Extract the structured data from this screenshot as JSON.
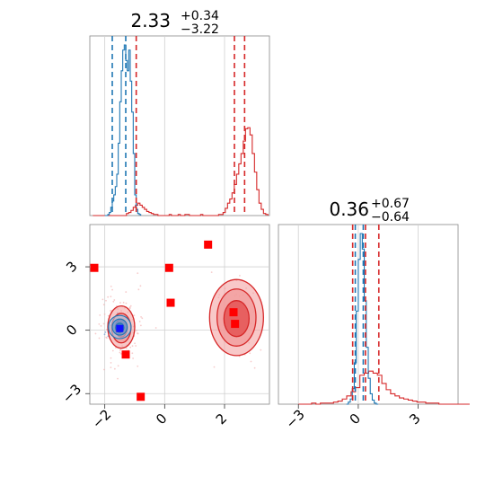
{
  "figure": {
    "colors": {
      "red": "#d62728",
      "blue": "#1f77b4",
      "marker": "#ff0000",
      "grid": "#d0d0d0",
      "axis": "#888888",
      "fill_red": "#f29a9a",
      "fill_red_dark": "#e34a4a",
      "fill_blue": "#a9c7e6",
      "fill_blue_dark": "#5a8fca"
    }
  },
  "chart_data": [
    {
      "type": "histogram",
      "panel": "marginal-param-1",
      "title": {
        "value": "2.33",
        "plus": "+0.34",
        "minus": "−3.22"
      },
      "xlim": [
        -2.5,
        3.5
      ],
      "grid": true,
      "red_dashed_lines": [
        -0.95,
        2.33,
        2.67
      ],
      "blue_dashed_lines": [
        -1.75,
        -1.3
      ],
      "series": [
        {
          "color": "red",
          "bins_x0": -2.4,
          "bin_width": 0.075,
          "counts": [
            0,
            0,
            0,
            0,
            0,
            0,
            0,
            0,
            0,
            0,
            0,
            0,
            0,
            0,
            0,
            2,
            3,
            5,
            8,
            10,
            12,
            10,
            8,
            6,
            4,
            3,
            2,
            1,
            1,
            0,
            0,
            0,
            0,
            0,
            1,
            0,
            0,
            0,
            1,
            0,
            0,
            1,
            1,
            0,
            0,
            0,
            0,
            0,
            1,
            0,
            0,
            0,
            0,
            0,
            0,
            0,
            1,
            1,
            3,
            7,
            12,
            16,
            22,
            30,
            40,
            50,
            60,
            72,
            84,
            85,
            78,
            60,
            42,
            25,
            12,
            6,
            2,
            1
          ]
        },
        {
          "color": "blue",
          "bins_x0": -2.0,
          "bin_width": 0.05,
          "counts": [
            0,
            0,
            1,
            3,
            8,
            14,
            20,
            28,
            40,
            70,
            110,
            140,
            160,
            165,
            150,
            140,
            160,
            130,
            100,
            60,
            20,
            6,
            2,
            1
          ]
        }
      ]
    },
    {
      "type": "histogram",
      "panel": "marginal-param-2",
      "title": {
        "value": "0.36",
        "plus": "+0.67",
        "minus": "−0.64"
      },
      "xlim": [
        -4,
        5
      ],
      "xticks": [
        -3,
        0,
        3
      ],
      "grid": true,
      "red_dashed_lines": [
        -0.28,
        0.36,
        1.03
      ],
      "blue_dashed_lines": [
        -0.15,
        0.25
      ],
      "series": [
        {
          "color": "red",
          "bins_x0": -3.0,
          "bin_width": 0.22,
          "counts": [
            0,
            0,
            0,
            1,
            0,
            1,
            1,
            1,
            2,
            3,
            5,
            8,
            12,
            16,
            28,
            30,
            32,
            30,
            28,
            20,
            14,
            10,
            8,
            6,
            5,
            4,
            3,
            2,
            2,
            1,
            1,
            1,
            0,
            0,
            0,
            0,
            0,
            0,
            0
          ]
        },
        {
          "color": "blue",
          "bins_x0": -0.6,
          "bin_width": 0.1,
          "counts": [
            0,
            2,
            5,
            15,
            40,
            90,
            140,
            165,
            150,
            100,
            55,
            25,
            10,
            4,
            1,
            0
          ]
        }
      ]
    },
    {
      "type": "scatter",
      "panel": "joint-param1-param2",
      "xlim": [
        -2.5,
        3.5
      ],
      "ylim": [
        -3.5,
        5
      ],
      "xticks": [
        -2,
        0,
        2
      ],
      "yticks": [
        -3,
        0,
        3
      ],
      "grid": true,
      "red_markers": [
        {
          "x": -2.35,
          "y": 2.95
        },
        {
          "x": 0.15,
          "y": 2.95
        },
        {
          "x": 1.45,
          "y": 4.05
        },
        {
          "x": 0.2,
          "y": 1.3
        },
        {
          "x": 2.3,
          "y": 0.85
        },
        {
          "x": 2.35,
          "y": 0.3
        },
        {
          "x": -1.3,
          "y": -1.15
        },
        {
          "x": -0.8,
          "y": -3.15
        }
      ],
      "red_contours": [
        {
          "cx": 2.4,
          "cy": 0.6,
          "rx": 0.9,
          "ry": 1.8
        },
        {
          "cx": 2.4,
          "cy": 0.6,
          "rx": 0.65,
          "ry": 1.35
        },
        {
          "cx": 2.4,
          "cy": 0.55,
          "rx": 0.42,
          "ry": 0.85
        },
        {
          "cx": -1.45,
          "cy": 0.15,
          "rx": 0.45,
          "ry": 1.0
        },
        {
          "cx": -1.45,
          "cy": 0.1,
          "rx": 0.32,
          "ry": 0.7
        },
        {
          "cx": -1.45,
          "cy": 0.1,
          "rx": 0.2,
          "ry": 0.42
        }
      ],
      "blue_contours": [
        {
          "cx": -1.5,
          "cy": 0.15,
          "rx": 0.38,
          "ry": 0.55
        },
        {
          "cx": -1.5,
          "cy": 0.15,
          "rx": 0.25,
          "ry": 0.38
        },
        {
          "cx": -1.5,
          "cy": 0.12,
          "rx": 0.14,
          "ry": 0.22
        }
      ],
      "blue_marker": {
        "x": -1.5,
        "y": 0.08
      }
    }
  ]
}
